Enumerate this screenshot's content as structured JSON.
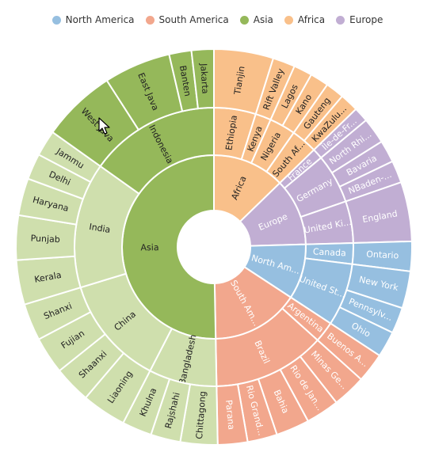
{
  "chart_data": {
    "type": "sunburst",
    "legend_position": "top",
    "categories": [
      {
        "name": "North America",
        "color": "#96bfe0",
        "label_color": "#ffffff",
        "label": "North Am...",
        "children": [
          {
            "name": "Canada",
            "label": "Canada",
            "children": [
              {
                "name": "Ontario",
                "label": "Ontario",
                "value": 4
              }
            ]
          },
          {
            "name": "United States",
            "label": "United St...",
            "children": [
              {
                "name": "New York",
                "label": "New York",
                "value": 5
              },
              {
                "name": "Pennsylvania",
                "label": "Pennsylv...",
                "value": 3.5
              },
              {
                "name": "Ohio",
                "label": "Ohio",
                "value": 3.5
              }
            ]
          }
        ]
      },
      {
        "name": "South America",
        "color": "#f2a78d",
        "label_color": "#ffffff",
        "label": "South Am...",
        "children": [
          {
            "name": "Argentina",
            "label": "Argentina",
            "children": [
              {
                "name": "Buenos Aires",
                "label": "Buenos A...",
                "value": 4
              }
            ]
          },
          {
            "name": "Brazil",
            "label": "Brazil",
            "children": [
              {
                "name": "Minas Gerais",
                "label": "Minas Ge...",
                "value": 4.5
              },
              {
                "name": "Rio de Janeiro",
                "label": "Rio de Jan...",
                "value": 4.5
              },
              {
                "name": "Bahia",
                "label": "Bahia",
                "value": 4.5
              },
              {
                "name": "Rio Grande do Sul",
                "label": "Rio Grand...",
                "value": 4
              },
              {
                "name": "Parana",
                "label": "Parana",
                "value": 4
              }
            ]
          }
        ]
      },
      {
        "name": "Asia",
        "color": "#95b85a",
        "label_color": "#222222",
        "label": "Asia",
        "children": [
          {
            "name": "Bangladesh",
            "label": "Bangladesh",
            "color": "#cfdfad",
            "children": [
              {
                "name": "Chittagong",
                "label": "Chittagong",
                "value": 5
              },
              {
                "name": "Rajshahi",
                "label": "Rajshahi",
                "value": 4
              },
              {
                "name": "Khulna",
                "label": "Khulna",
                "value": 4
              }
            ]
          },
          {
            "name": "China",
            "label": "China",
            "color": "#cfdfad",
            "children": [
              {
                "name": "Liaoning",
                "label": "Liaoning",
                "value": 6
              },
              {
                "name": "Shaanxi",
                "label": "Shaanxi",
                "value": 5
              },
              {
                "name": "Fujian",
                "label": "Fujian",
                "value": 5
              },
              {
                "name": "Shanxi",
                "label": "Shanxi",
                "value": 5
              }
            ]
          },
          {
            "name": "India",
            "label": "India",
            "color": "#cfdfad",
            "children": [
              {
                "name": "Kerala",
                "label": "Kerala",
                "value": 6
              },
              {
                "name": "Punjab",
                "label": "Punjab",
                "value": 6
              },
              {
                "name": "Haryana",
                "label": "Haryana",
                "value": 5
              },
              {
                "name": "Delhi",
                "label": "Delhi",
                "value": 3.5
              },
              {
                "name": "Jammu",
                "label": "Jammu",
                "value": 3.5
              }
            ]
          },
          {
            "name": "Indonesia",
            "label": "Indonesia",
            "color": "#95b85a",
            "children": [
              {
                "name": "West Java",
                "label": "West Java",
                "value": 10,
                "color": "#95b85a"
              },
              {
                "name": "East Java",
                "label": "East Java",
                "value": 9
              },
              {
                "name": "Banten",
                "label": "Banten",
                "value": 3
              },
              {
                "name": "Jakarta",
                "label": "Jakarta",
                "value": 3
              }
            ]
          }
        ]
      },
      {
        "name": "Africa",
        "color": "#f9c08a",
        "label_color": "#222222",
        "label": "Africa",
        "children": [
          {
            "name": "Ethiopia",
            "label": "Ethiopia",
            "children": [
              {
                "name": "Tianjin",
                "label": "Tianjin",
                "value": 8
              }
            ]
          },
          {
            "name": "Kenya",
            "label": "Kenya",
            "children": [
              {
                "name": "Rift Valley",
                "label": "Rift Valley",
                "value": 3
              }
            ]
          },
          {
            "name": "Nigeria",
            "label": "Nigeria",
            "children": [
              {
                "name": "Lagos",
                "label": "Lagos",
                "value": 2.5
              },
              {
                "name": "Kano",
                "label": "Kano",
                "value": 2.5
              }
            ]
          },
          {
            "name": "South Africa",
            "label": "South Af...",
            "children": [
              {
                "name": "Gauteng",
                "label": "Gauteng",
                "value": 2.5
              },
              {
                "name": "KwaZulu-Natal",
                "label": "KwaZulu...",
                "value": 2.5
              }
            ]
          }
        ]
      },
      {
        "name": "Europe",
        "color": "#c1aed3",
        "label_color": "#ffffff",
        "label": "Europe",
        "children": [
          {
            "name": "France",
            "label": "France",
            "children": [
              {
                "name": "Île-de-France",
                "label": "Île-de-Fr...",
                "value": 2
              }
            ]
          },
          {
            "name": "Germany",
            "label": "Germany",
            "children": [
              {
                "name": "North Rhine-Westphalia",
                "label": "North Rhi...",
                "value": 3.5
              },
              {
                "name": "Bavaria",
                "label": "Bavaria",
                "value": 3
              },
              {
                "name": "Baden-Württemberg",
                "label": "NBaden-...",
                "value": 3
              }
            ]
          },
          {
            "name": "United Kingdom",
            "label": "United Ki...",
            "children": [
              {
                "name": "England",
                "label": "England",
                "value": 8
              }
            ]
          }
        ]
      }
    ]
  }
}
